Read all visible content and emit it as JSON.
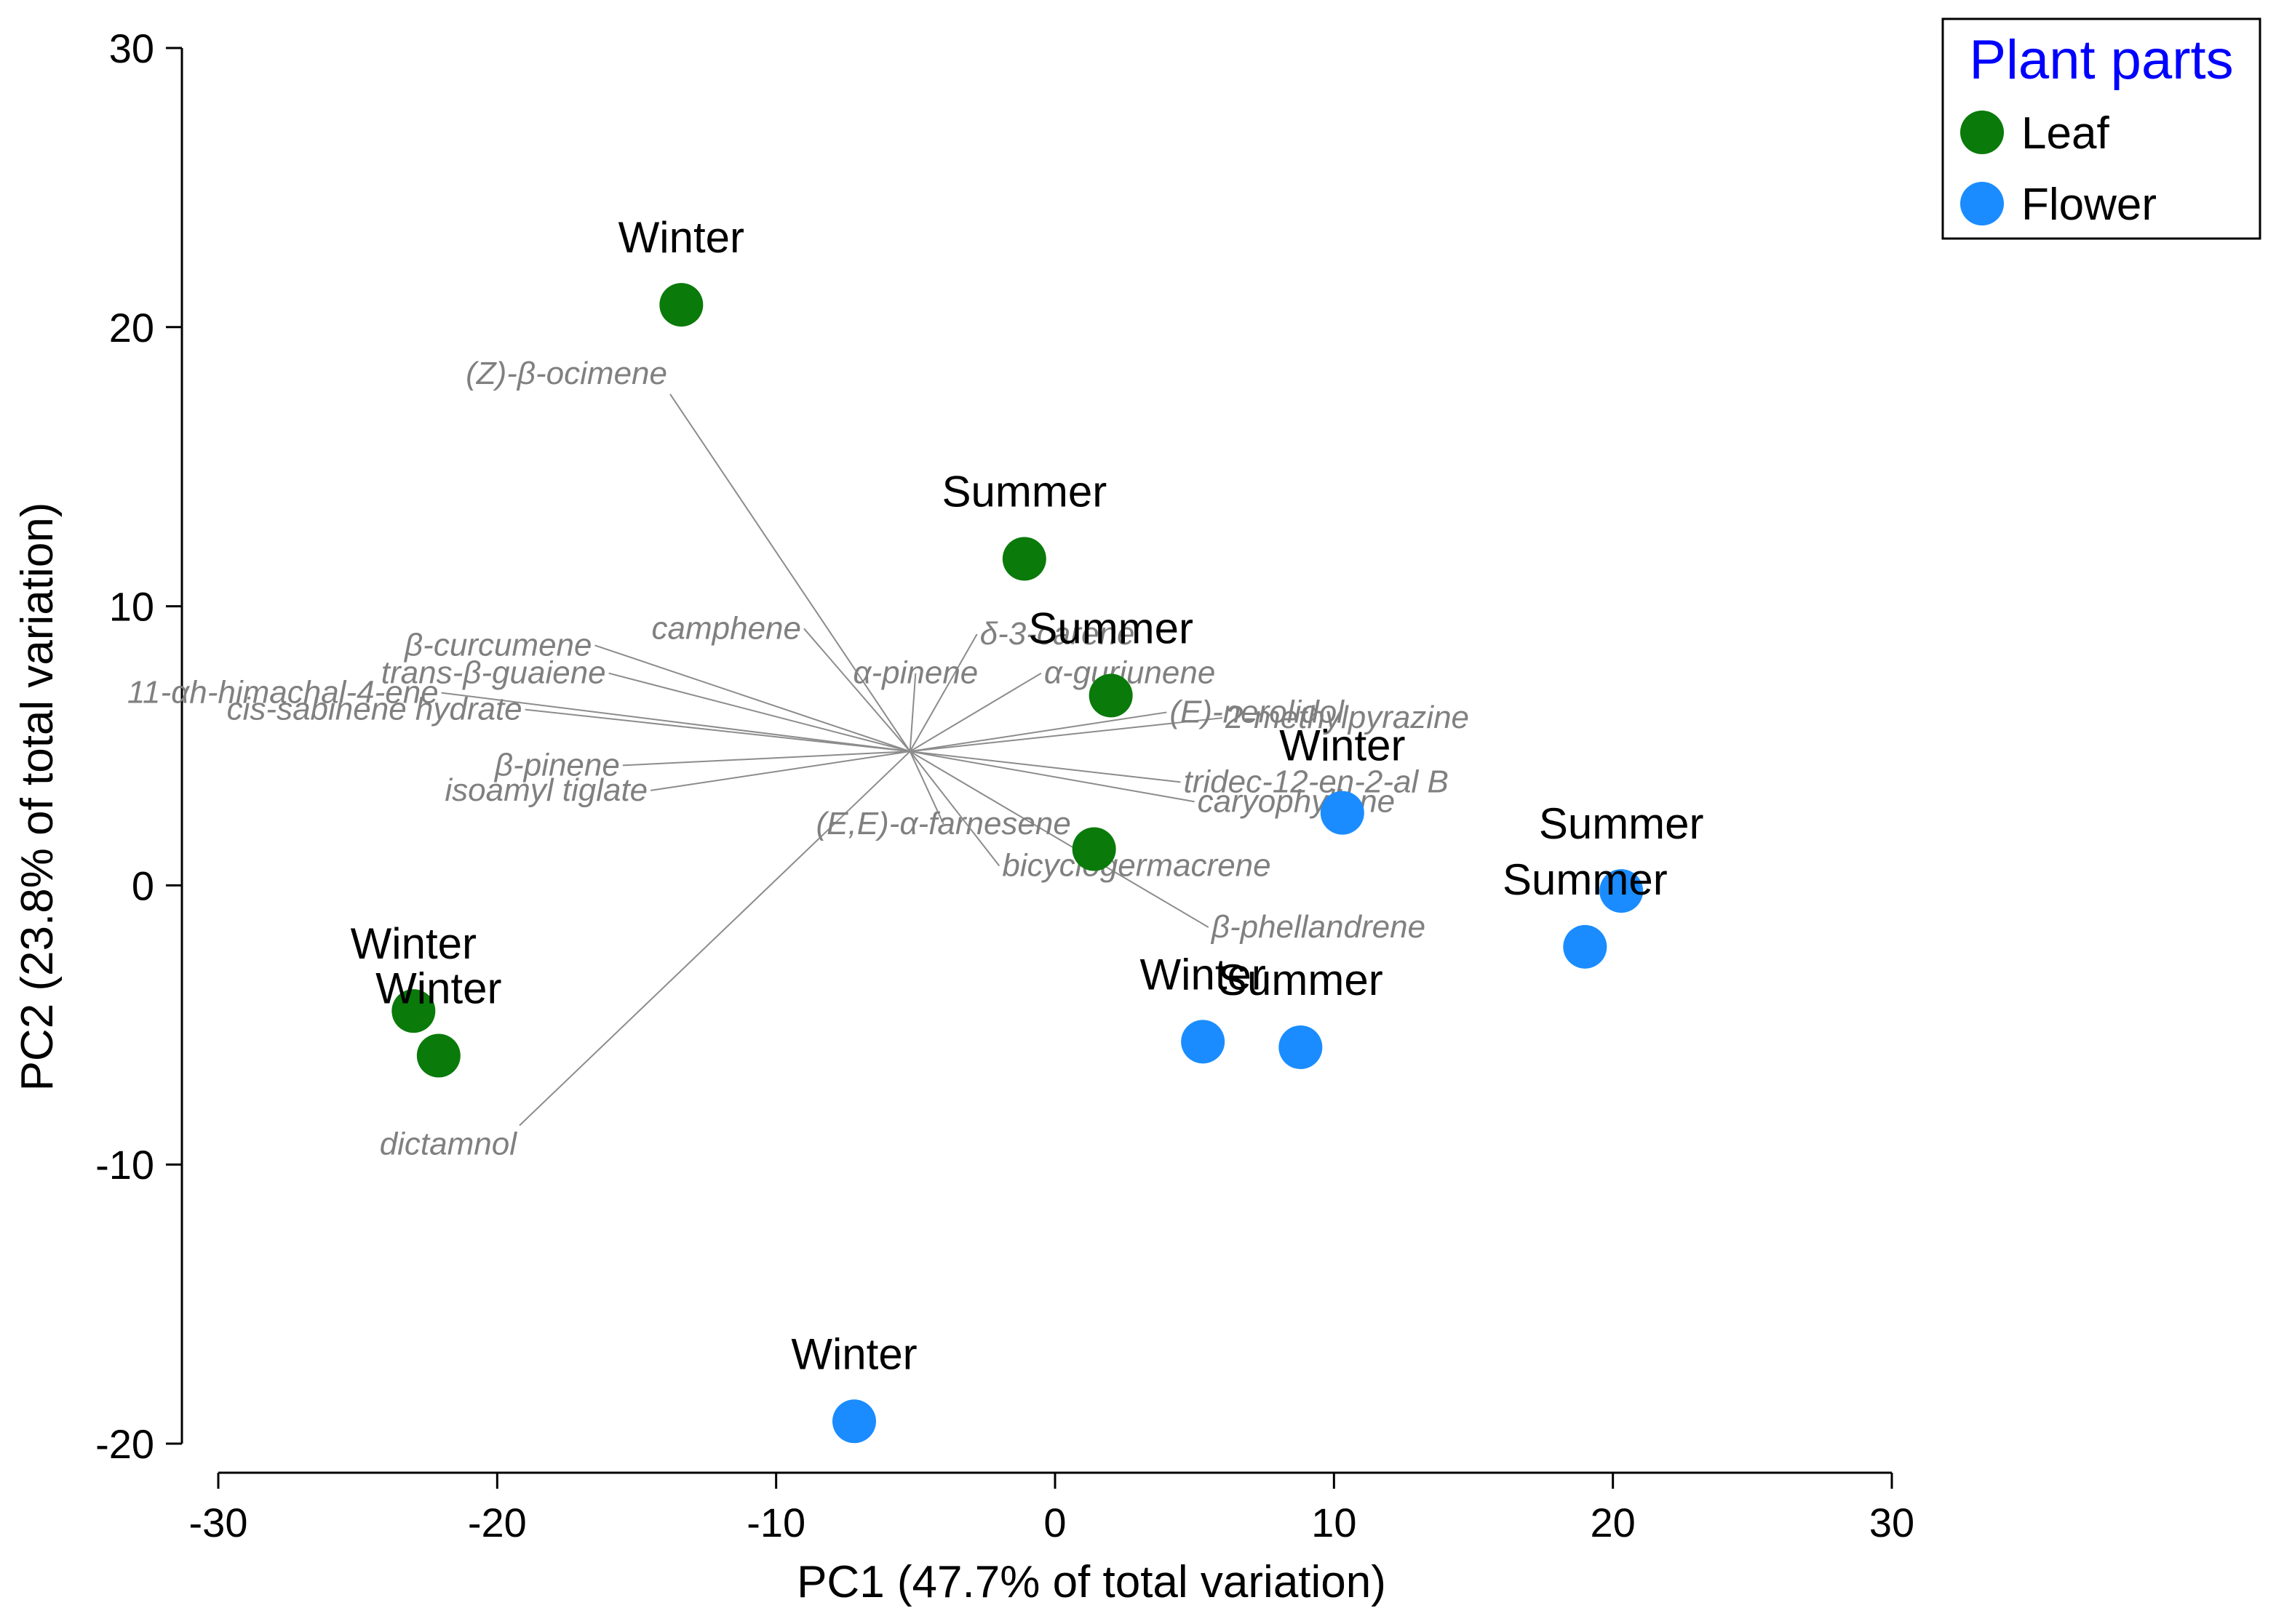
{
  "chart_data": {
    "type": "scatter",
    "xlabel": "PC1 (47.7% of total variation)",
    "ylabel": "PC2 (23.8% of total variation)",
    "xlim": [
      -30,
      30
    ],
    "ylim": [
      -20,
      30
    ],
    "xticks": [
      -30,
      -20,
      -10,
      0,
      10,
      20,
      30
    ],
    "yticks": [
      -20,
      -10,
      0,
      10,
      20,
      30
    ],
    "grid": false,
    "legend": {
      "title": "Plant parts",
      "title_color": "#0000ff",
      "position": "top-right",
      "entries": [
        {
          "name": "Leaf",
          "color": "#0a7a0a"
        },
        {
          "name": "Flower",
          "color": "#1a8cff"
        }
      ]
    },
    "series": [
      {
        "name": "Leaf",
        "color": "#0a7a0a",
        "points": [
          {
            "x": -13.4,
            "y": 20.8,
            "label": "Winter"
          },
          {
            "x": -1.1,
            "y": 11.7,
            "label": "Summer"
          },
          {
            "x": 2.0,
            "y": 6.8,
            "label": "Summer"
          },
          {
            "x": 1.4,
            "y": 1.3,
            "label": ""
          },
          {
            "x": -23.0,
            "y": -4.5,
            "label": "Winter"
          },
          {
            "x": -22.1,
            "y": -6.1,
            "label": "Winter"
          }
        ]
      },
      {
        "name": "Flower",
        "color": "#1a8cff",
        "points": [
          {
            "x": 10.3,
            "y": 2.6,
            "label": "Winter"
          },
          {
            "x": 20.3,
            "y": -0.2,
            "label": "Summer"
          },
          {
            "x": 19.0,
            "y": -2.2,
            "label": "Summer"
          },
          {
            "x": 5.3,
            "y": -5.6,
            "label": "Winter"
          },
          {
            "x": 8.8,
            "y": -5.8,
            "label": "Summer"
          },
          {
            "x": -7.2,
            "y": -19.2,
            "label": "Winter"
          }
        ]
      }
    ],
    "loadings_origin": {
      "x": -5.2,
      "y": 4.8
    },
    "loadings": [
      {
        "label": "(Z)-β-ocimene",
        "x": -13.8,
        "y": 17.6
      },
      {
        "label": "dictamnol",
        "x": -19.2,
        "y": -8.6
      },
      {
        "label": "β-phellandrene",
        "x": 5.5,
        "y": -1.5
      },
      {
        "label": "camphene",
        "x": -9.0,
        "y": 9.2
      },
      {
        "label": "β-curcumene",
        "x": -16.5,
        "y": 8.6
      },
      {
        "label": "trans-β-guaiene",
        "x": -16.0,
        "y": 7.6
      },
      {
        "label": "11-αh-himachal-4-ene",
        "x": -22.0,
        "y": 6.9
      },
      {
        "label": "cis-sabinene hydrate",
        "x": -19.0,
        "y": 6.3
      },
      {
        "label": "β-pinene",
        "x": -15.5,
        "y": 4.3
      },
      {
        "label": "isoamyl tiglate",
        "x": -14.5,
        "y": 3.4
      },
      {
        "label": "δ-3-carene",
        "x": -2.8,
        "y": 9.0
      },
      {
        "label": "α-pinene",
        "x": -5.0,
        "y": 7.6
      },
      {
        "label": "α-gurjunene",
        "x": -0.5,
        "y": 7.6
      },
      {
        "label": "2-methylpyrazine",
        "x": 6.0,
        "y": 6.0
      },
      {
        "label": "(E)-nerolidol",
        "x": 4.0,
        "y": 6.2
      },
      {
        "label": "tridec-12-en-2-al B",
        "x": 4.5,
        "y": 3.7
      },
      {
        "label": "caryophyllene",
        "x": 5.0,
        "y": 3.0
      },
      {
        "label": "(E,E)-α-farnesene",
        "x": -4.0,
        "y": 2.2
      },
      {
        "label": "bicyclogermacrene",
        "x": -2.0,
        "y": 0.7
      }
    ]
  }
}
